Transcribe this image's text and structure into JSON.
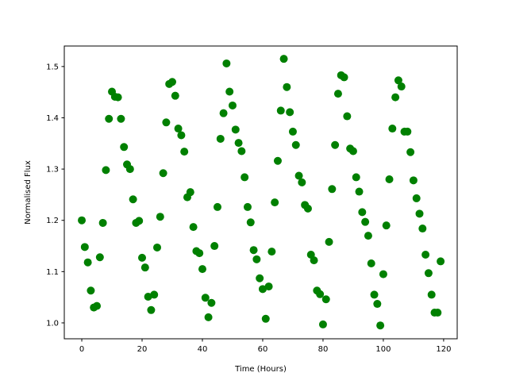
{
  "chart_data": {
    "type": "scatter",
    "title": "",
    "xlabel": "Time (Hours)",
    "ylabel": "Normalised Flux",
    "xlim": [
      -5.8,
      124.5
    ],
    "ylim": [
      0.969,
      1.54
    ],
    "xticks": [
      0,
      20,
      40,
      60,
      80,
      100,
      120
    ],
    "yticks": [
      1.0,
      1.1,
      1.2,
      1.3,
      1.4,
      1.5
    ],
    "xtick_labels": [
      "0",
      "20",
      "40",
      "60",
      "80",
      "100",
      "120"
    ],
    "ytick_labels": [
      "1.0",
      "1.1",
      "1.2",
      "1.3",
      "1.4",
      "1.5"
    ],
    "grid": false,
    "marker_color": "#008000",
    "x": [
      0,
      1,
      2,
      3,
      4,
      5,
      6,
      7,
      8,
      9,
      10,
      11,
      12,
      13,
      14,
      15,
      16,
      17,
      18,
      19,
      20,
      21,
      22,
      23,
      24,
      25,
      26,
      27,
      28,
      29,
      30,
      31,
      32,
      33,
      34,
      35,
      36,
      37,
      38,
      39,
      40,
      41,
      42,
      43,
      44,
      45,
      46,
      47,
      48,
      49,
      50,
      51,
      52,
      53,
      54,
      55,
      56,
      57,
      58,
      59,
      60,
      61,
      62,
      63,
      64,
      65,
      66,
      67,
      68,
      69,
      70,
      71,
      72,
      73,
      74,
      75,
      76,
      77,
      78,
      79,
      80,
      81,
      82,
      83,
      84,
      85,
      86,
      87,
      88,
      89,
      90,
      91,
      92,
      93,
      94,
      95,
      96,
      97,
      98,
      99,
      100,
      101,
      102,
      103,
      104,
      105,
      106,
      107,
      108,
      109,
      110,
      111,
      112,
      113,
      114,
      115,
      116,
      117,
      118,
      119
    ],
    "y": [
      1.2,
      1.148,
      1.118,
      1.063,
      1.03,
      1.033,
      1.128,
      1.195,
      1.298,
      1.398,
      1.451,
      1.441,
      1.44,
      1.398,
      1.343,
      1.309,
      1.3,
      1.241,
      1.195,
      1.199,
      1.127,
      1.108,
      1.051,
      1.025,
      1.055,
      1.147,
      1.207,
      1.292,
      1.391,
      1.466,
      1.47,
      1.443,
      1.379,
      1.366,
      1.334,
      1.245,
      1.255,
      1.187,
      1.14,
      1.136,
      1.105,
      1.049,
      1.011,
      1.039,
      1.15,
      1.226,
      1.359,
      1.409,
      1.506,
      1.451,
      1.424,
      1.377,
      1.351,
      1.335,
      1.284,
      1.226,
      1.196,
      1.142,
      1.124,
      1.087,
      1.066,
      1.008,
      1.071,
      1.139,
      1.235,
      1.316,
      1.414,
      1.515,
      1.46,
      1.411,
      1.373,
      1.347,
      1.287,
      1.274,
      1.23,
      1.223,
      1.133,
      1.122,
      1.063,
      1.056,
      0.997,
      1.046,
      1.158,
      1.261,
      1.347,
      1.447,
      1.483,
      1.479,
      1.403,
      1.34,
      1.335,
      1.284,
      1.256,
      1.216,
      1.197,
      1.17,
      1.116,
      1.055,
      1.037,
      0.995,
      1.095,
      1.19,
      1.28,
      1.379,
      1.44,
      1.473,
      1.461,
      1.373,
      1.373,
      1.333,
      1.278,
      1.243,
      1.213,
      1.184,
      1.133,
      1.097,
      1.055,
      1.02,
      1.02,
      1.12
    ]
  }
}
